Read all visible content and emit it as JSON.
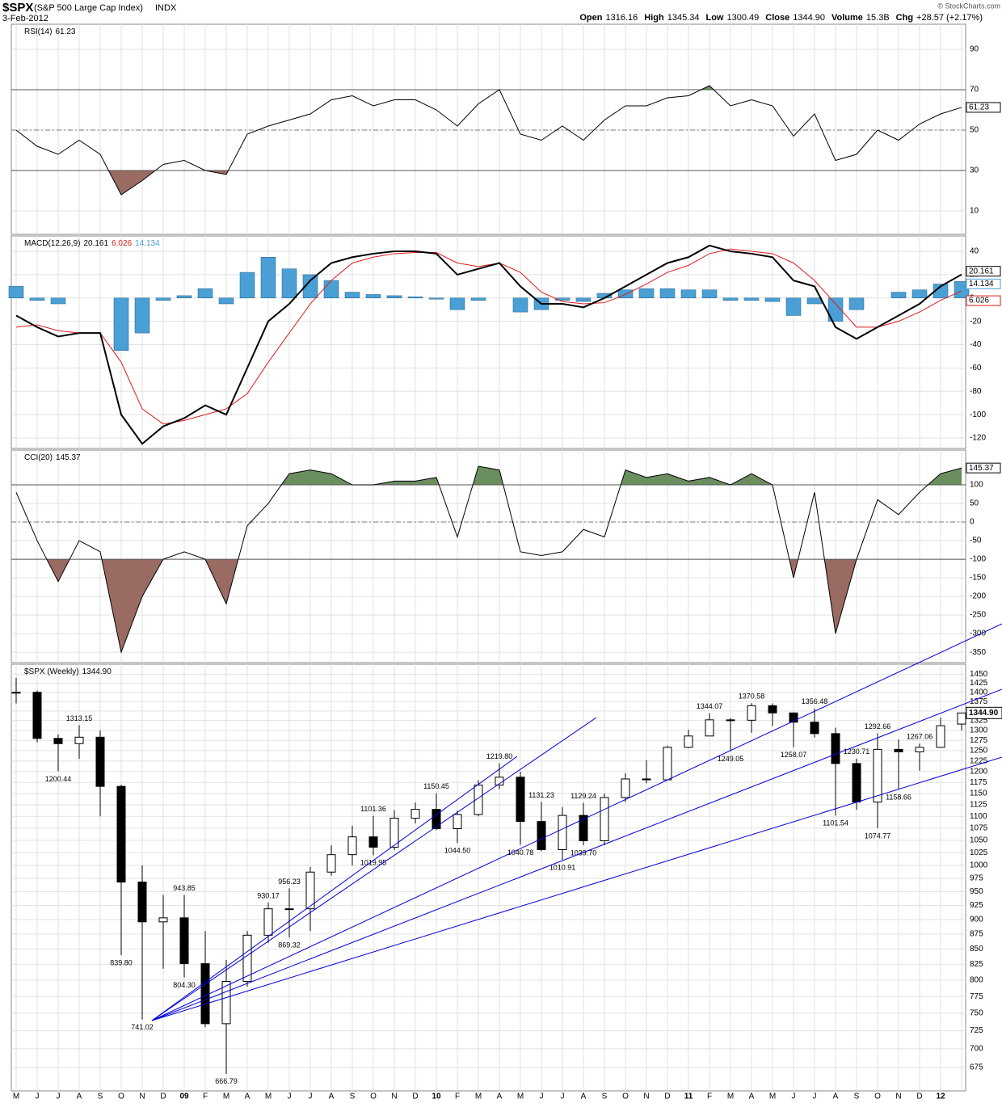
{
  "header": {
    "symbol": "$SPX",
    "name": "(S&P 500 Large Cap Index)",
    "exchange": "INDX",
    "date": "3-Feb-2012",
    "copyright": "© StockCharts.com",
    "quote": [
      [
        "Open",
        "1316.16"
      ],
      [
        "High",
        "1345.34"
      ],
      [
        "Low",
        "1300.49"
      ],
      [
        "Close",
        "1344.90"
      ],
      [
        "Volume",
        "15.3B"
      ],
      [
        "Chg",
        "+28.57 (+2.17%)"
      ]
    ]
  },
  "chart_data": [
    {
      "type": "oscillator",
      "title": "RSI(14)",
      "color": "#000000",
      "values": [
        50,
        42,
        38,
        45,
        38,
        18,
        25,
        33,
        35,
        30,
        28,
        48,
        52,
        55,
        58,
        65,
        67,
        62,
        65,
        65,
        60,
        52,
        63,
        70,
        48,
        45,
        52,
        45,
        55,
        62,
        62,
        66,
        67,
        72,
        62,
        65,
        62,
        47,
        58,
        35,
        38,
        50,
        45,
        53,
        58,
        61.23
      ],
      "ylim": [
        -1.6,
        102.4
      ],
      "yticks": [
        10,
        30,
        50,
        70,
        90
      ],
      "overbought": 70,
      "oversold": 30,
      "midline": 50,
      "overbought_color": "#6b8e5f",
      "oversold_color": "#9a6b63"
    },
    {
      "type": "macd",
      "title": "MACD(12,26,9)",
      "macd": {
        "color": "#000000",
        "values": [
          -15,
          -25,
          -33,
          -30,
          -30,
          -100,
          -125,
          -110,
          -103,
          -92,
          -100,
          -60,
          -20,
          -5,
          15,
          30,
          35,
          38,
          40,
          40,
          38,
          20,
          25,
          30,
          10,
          -5,
          -5,
          -8,
          0,
          10,
          20,
          30,
          35,
          45,
          40,
          38,
          35,
          15,
          10,
          -25,
          -35,
          -25,
          -15,
          -5,
          10,
          20.161
        ]
      },
      "signal": {
        "color": "#e31a1c",
        "values": [
          -25,
          -23,
          -28,
          -30,
          -30,
          -55,
          -95,
          -108,
          -105,
          -100,
          -95,
          -82,
          -55,
          -30,
          -5,
          15,
          30,
          35,
          38,
          39,
          39,
          30,
          27,
          30,
          22,
          5,
          -3,
          -5,
          -4,
          3,
          12,
          22,
          28,
          38,
          42,
          40,
          38,
          30,
          15,
          -5,
          -25,
          -25,
          -20,
          -12,
          -2,
          6.026
        ]
      },
      "histogram": {
        "color": "#4a9fd4",
        "values": [
          10,
          -2,
          -5,
          0,
          0,
          -45,
          -30,
          -2,
          2,
          8,
          -5,
          22,
          35,
          25,
          20,
          15,
          5,
          3,
          2,
          1,
          -1,
          -10,
          -2,
          0,
          -12,
          -10,
          -2,
          -3,
          4,
          7,
          8,
          8,
          7,
          7,
          -2,
          -2,
          -3,
          -15,
          -5,
          -20,
          -10,
          0,
          5,
          7,
          12,
          14.134
        ]
      },
      "ylim": [
        -129,
        53.2
      ],
      "yticks": [
        -120,
        -100,
        -80,
        -60,
        -40,
        -20,
        0,
        20,
        40
      ]
    },
    {
      "type": "oscillator",
      "title": "CCI(20)",
      "color": "#000000",
      "values": [
        80,
        -50,
        -160,
        -50,
        -80,
        -350,
        -200,
        -100,
        -80,
        -100,
        -220,
        -10,
        50,
        130,
        140,
        130,
        100,
        100,
        110,
        110,
        120,
        -40,
        150,
        140,
        -80,
        -90,
        -80,
        -20,
        -40,
        140,
        120,
        130,
        110,
        120,
        100,
        130,
        100,
        -150,
        80,
        -300,
        -100,
        60,
        20,
        80,
        130,
        145.37
      ],
      "ylim": [
        -378,
        193.5
      ],
      "yticks": [
        -350,
        -300,
        -250,
        -200,
        -150,
        -100,
        -50,
        0,
        50,
        100
      ],
      "overbought": 100,
      "oversold": -100,
      "midline": 0,
      "overbought_color": "#6b8e5f",
      "oversold_color": "#9a6b63"
    },
    {
      "type": "candlestick",
      "title": "$SPX (Weekly)",
      "log_scale": true,
      "categories": [
        "M",
        "J",
        "J",
        "A",
        "S",
        "O",
        "N",
        "D",
        "09",
        "F",
        "M",
        "A",
        "M",
        "J",
        "J",
        "A",
        "S",
        "O",
        "N",
        "D",
        "10",
        "F",
        "M",
        "A",
        "M",
        "J",
        "J",
        "A",
        "S",
        "O",
        "N",
        "D",
        "11",
        "F",
        "M",
        "A",
        "M",
        "J",
        "J",
        "A",
        "S",
        "O",
        "N",
        "D",
        "12",
        null
      ],
      "open": [
        1400,
        1400,
        1280,
        1267,
        1283,
        1166,
        968,
        896,
        903,
        826,
        735,
        798,
        873,
        919,
        919,
        987,
        1021,
        1057,
        1036,
        1096,
        1115,
        1074,
        1104,
        1169,
        1187,
        1089,
        1031,
        1102,
        1049,
        1141,
        1183,
        1181,
        1258,
        1286,
        1327,
        1326,
        1364,
        1345,
        1321,
        1292,
        1219,
        1131,
        1253,
        1247,
        1258,
        1316.16
      ],
      "high": [
        1440,
        1405,
        1290,
        1313.15,
        1300,
        1170,
        1000,
        944,
        943.85,
        880,
        832,
        880,
        930.17,
        956.23,
        997,
        1040,
        1080,
        1101.36,
        1113,
        1130,
        1150.45,
        1112,
        1180,
        1219.8,
        1200,
        1131.23,
        1120,
        1129.24,
        1150,
        1196,
        1227,
        1262,
        1302,
        1344.07,
        1332,
        1370.58,
        1370,
        1346,
        1356.48,
        1307,
        1230.71,
        1292.66,
        1277,
        1267.06,
        1333,
        1345.34
      ],
      "low": [
        1370,
        1270,
        1200.44,
        1230,
        1100,
        839.8,
        741.02,
        818,
        804.3,
        730,
        666.79,
        790,
        860,
        869.32,
        880,
        980,
        1000,
        1019.95,
        1030,
        1085,
        1071,
        1044.5,
        1100,
        1160,
        1040.78,
        1028,
        1010.91,
        1039.7,
        1040,
        1131,
        1173,
        1181,
        1256,
        1290,
        1249.05,
        1294,
        1311,
        1258.07,
        1282,
        1101.54,
        1114,
        1074.77,
        1158.66,
        1202,
        1258,
        1300.49
      ],
      "close": [
        1400,
        1280,
        1267,
        1283,
        1166,
        968,
        896,
        903,
        826,
        735,
        798,
        873,
        919,
        919,
        987,
        1021,
        1057,
        1036,
        1096,
        1115,
        1074,
        1104,
        1169,
        1187,
        1089,
        1031,
        1102,
        1049,
        1141,
        1183,
        1181,
        1258,
        1286,
        1327,
        1326,
        1364,
        1345,
        1321,
        1292,
        1219,
        1131,
        1253,
        1247,
        1258,
        1312,
        1344.9
      ],
      "ylim": [
        645,
        1478.6
      ],
      "yticks": [
        675,
        700,
        725,
        750,
        775,
        800,
        825,
        850,
        875,
        900,
        925,
        950,
        975,
        1000,
        1025,
        1050,
        1075,
        1100,
        1125,
        1150,
        1175,
        1200,
        1225,
        1250,
        1275,
        1300,
        1325,
        1350,
        1375,
        1400,
        1425,
        1450
      ],
      "annotations": [
        1313.15,
        1200.44,
        {
          "value": 839.8,
          "label": "839.80"
        },
        741.02,
        943.85,
        {
          "value": 804.3,
          "label": "804.30"
        },
        666.79,
        930.17,
        956.23,
        869.32,
        1101.36,
        1019.95,
        1150.45,
        {
          "value": 1044.5,
          "label": "1044.50"
        },
        {
          "value": 1219.8,
          "label": "1219.80"
        },
        1131.23,
        1040.78,
        1010.91,
        1129.24,
        {
          "value": 1039.7,
          "label": "1039.70"
        },
        1344.07,
        1249.05,
        1370.58,
        1356.48,
        1258.07,
        1230.71,
        1101.54,
        1074.77,
        1292.66,
        1267.06,
        1158.66
      ]
    }
  ]
}
